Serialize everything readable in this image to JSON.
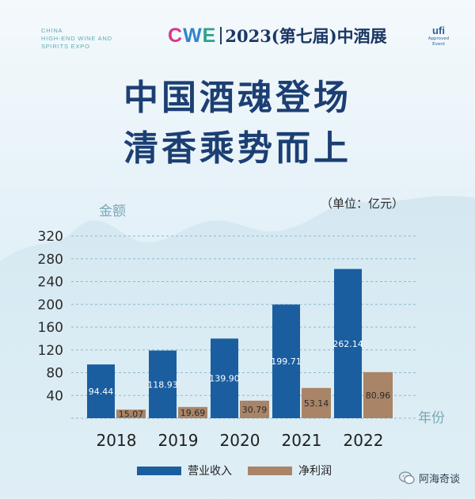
{
  "header": {
    "expo_lines": [
      "CHINA",
      "HIGH-END WINE AND",
      "SPIRITS EXPO"
    ],
    "logo_c": "C",
    "logo_w": "W",
    "logo_e": "E",
    "logo_title": "2023(第七届)中酒展",
    "ufi_mark": "ufi",
    "ufi_sub1": "Approved",
    "ufi_sub2": "Event"
  },
  "headline": {
    "line1": "中国酒魂登场",
    "line2": "清香乘势而上"
  },
  "colors": {
    "revenue": "#1a5ea0",
    "profit": "#a98467",
    "navy": "#1c3f73"
  },
  "chart_data": {
    "type": "bar",
    "ylabel": "金额",
    "xlabel": "年份",
    "unit_label": "（单位：亿元）",
    "ylim": [
      0,
      320
    ],
    "yticks": [
      40,
      80,
      120,
      160,
      200,
      240,
      280,
      320
    ],
    "categories": [
      "2018",
      "2019",
      "2020",
      "2021",
      "2022"
    ],
    "series": [
      {
        "name": "营业收入",
        "values": [
          94.44,
          118.93,
          139.9,
          199.71,
          262.14
        ],
        "labels": [
          "94.44",
          "118.93",
          "139.90",
          "199.71",
          "262.14"
        ]
      },
      {
        "name": "净利润",
        "values": [
          15.07,
          19.69,
          30.79,
          53.14,
          80.96
        ],
        "labels": [
          "15.07",
          "19.69",
          "30.79",
          "53.14",
          "80.96"
        ]
      }
    ],
    "grid": true,
    "legend": "bottom"
  },
  "watermark": "阿海奇谈"
}
